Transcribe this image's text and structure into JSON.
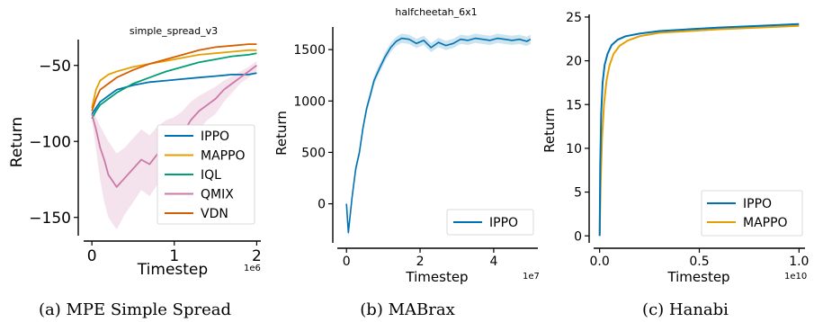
{
  "colors": {
    "IPPO": "#0072b2",
    "MAPPO": "#e69f00",
    "IQL": "#009e73",
    "QMIX": "#cc79a7",
    "VDN": "#d55e00"
  },
  "chart_data": [
    {
      "type": "line",
      "title": "simple_spread_v3",
      "caption": "(a) MPE Simple Spread",
      "xlabel": "Timestep",
      "ylabel": "Return",
      "x_offset_label": "1e6",
      "xlim": [
        -0.1,
        2.05
      ],
      "ylim": [
        -162,
        -33
      ],
      "xticks": [
        {
          "v": 0,
          "label": "0"
        },
        {
          "v": 1,
          "label": "1"
        },
        {
          "v": 2,
          "label": "2"
        }
      ],
      "yticks": [
        {
          "v": -50,
          "label": "−50"
        },
        {
          "v": -100,
          "label": "−100"
        },
        {
          "v": -150,
          "label": "−150"
        }
      ],
      "legend_position": "lower-right",
      "series": [
        {
          "name": "IPPO",
          "x": [
            0,
            0.05,
            0.1,
            0.2,
            0.3,
            0.5,
            0.7,
            0.9,
            1.1,
            1.3,
            1.5,
            1.7,
            1.9,
            2.0
          ],
          "y": [
            -82,
            -78,
            -74,
            -70,
            -66,
            -63,
            -61,
            -60,
            -59,
            -58,
            -57,
            -56,
            -56,
            -55
          ]
        },
        {
          "name": "MAPPO",
          "x": [
            0,
            0.05,
            0.1,
            0.2,
            0.3,
            0.5,
            0.7,
            0.9,
            1.1,
            1.3,
            1.5,
            1.7,
            1.9,
            2.0
          ],
          "y": [
            -78,
            -66,
            -60,
            -56,
            -54,
            -51,
            -49,
            -47,
            -45,
            -43,
            -42,
            -41,
            -40,
            -40
          ]
        },
        {
          "name": "IQL",
          "x": [
            0,
            0.05,
            0.1,
            0.2,
            0.3,
            0.5,
            0.7,
            0.9,
            1.1,
            1.3,
            1.5,
            1.7,
            1.9,
            2.0
          ],
          "y": [
            -85,
            -80,
            -76,
            -72,
            -68,
            -62,
            -58,
            -54,
            -51,
            -48,
            -46,
            -44,
            -43,
            -42
          ]
        },
        {
          "name": "QMIX",
          "x": [
            0,
            0.05,
            0.1,
            0.15,
            0.2,
            0.3,
            0.4,
            0.5,
            0.6,
            0.7,
            0.8,
            0.9,
            1.0,
            1.1,
            1.2,
            1.3,
            1.4,
            1.5,
            1.6,
            1.7,
            1.8,
            1.9,
            2.0
          ],
          "y": [
            -82,
            -92,
            -104,
            -112,
            -122,
            -130,
            -124,
            -118,
            -112,
            -115,
            -108,
            -103,
            -100,
            -95,
            -86,
            -80,
            -76,
            -72,
            -66,
            -62,
            -58,
            -54,
            -50
          ]
        },
        {
          "name": "VDN",
          "x": [
            0,
            0.05,
            0.1,
            0.2,
            0.3,
            0.5,
            0.7,
            0.9,
            1.1,
            1.3,
            1.5,
            1.7,
            1.9,
            2.0
          ],
          "y": [
            -80,
            -72,
            -66,
            -62,
            -58,
            -53,
            -49,
            -46,
            -43,
            -40,
            -38,
            -37,
            -36,
            -36
          ]
        }
      ],
      "qmix_band_upper": [
        -78,
        -84,
        -90,
        -95,
        -100,
        -108,
        -104,
        -98,
        -92,
        -96,
        -90,
        -86,
        -84,
        -80,
        -74,
        -70,
        -67,
        -64,
        -60,
        -57,
        -54,
        -51,
        -47
      ],
      "qmix_band_lower": [
        -86,
        -105,
        -125,
        -140,
        -150,
        -158,
        -148,
        -140,
        -132,
        -136,
        -128,
        -122,
        -118,
        -112,
        -100,
        -92,
        -86,
        -82,
        -74,
        -68,
        -62,
        -58,
        -54
      ]
    },
    {
      "type": "line",
      "title": "halfcheetah_6x1",
      "caption": "(b) MABrax",
      "xlabel": "Timestep",
      "ylabel": "Return",
      "x_offset_label": "1e7",
      "xlim": [
        -0.25,
        5.2
      ],
      "ylim": [
        -380,
        1720
      ],
      "xticks": [
        {
          "v": 0,
          "label": "0"
        },
        {
          "v": 2,
          "label": "2"
        },
        {
          "v": 4,
          "label": "4"
        }
      ],
      "yticks": [
        {
          "v": 0,
          "label": "0"
        },
        {
          "v": 500,
          "label": "500"
        },
        {
          "v": 1000,
          "label": "1000"
        },
        {
          "v": 1500,
          "label": "1500"
        }
      ],
      "legend_position": "lower-right",
      "series": [
        {
          "name": "IPPO",
          "x": [
            0,
            0.05,
            0.15,
            0.25,
            0.35,
            0.45,
            0.55,
            0.65,
            0.75,
            0.9,
            1.05,
            1.2,
            1.35,
            1.5,
            1.7,
            1.9,
            2.1,
            2.3,
            2.5,
            2.7,
            2.9,
            3.1,
            3.3,
            3.5,
            3.7,
            3.9,
            4.1,
            4.3,
            4.5,
            4.7,
            4.9,
            5.0
          ],
          "y": [
            0,
            -280,
            60,
            340,
            500,
            740,
            930,
            1060,
            1200,
            1320,
            1430,
            1520,
            1580,
            1610,
            1600,
            1560,
            1590,
            1520,
            1570,
            1540,
            1560,
            1600,
            1590,
            1610,
            1600,
            1590,
            1610,
            1600,
            1590,
            1600,
            1580,
            1600
          ]
        }
      ]
    },
    {
      "type": "line",
      "title": "",
      "caption": "(c) Hanabi",
      "xlabel": "Timestep",
      "ylabel": "Return",
      "x_offset_label": "1e10",
      "xlim": [
        -0.03,
        1.03
      ],
      "ylim": [
        -0.8,
        25.3
      ],
      "xticks": [
        {
          "v": 0,
          "label": "0.0"
        },
        {
          "v": 0.5,
          "label": "0.5"
        },
        {
          "v": 1.0,
          "label": "1.0"
        }
      ],
      "yticks": [
        {
          "v": 0,
          "label": "0"
        },
        {
          "v": 5,
          "label": "5"
        },
        {
          "v": 10,
          "label": "10"
        },
        {
          "v": 15,
          "label": "15"
        },
        {
          "v": 20,
          "label": "20"
        },
        {
          "v": 25,
          "label": "25"
        }
      ],
      "legend_position": "lower-right",
      "series": [
        {
          "name": "IPPO",
          "x": [
            0,
            0.003,
            0.008,
            0.015,
            0.025,
            0.04,
            0.06,
            0.09,
            0.13,
            0.2,
            0.3,
            0.45,
            0.6,
            0.8,
            1.0
          ],
          "y": [
            0,
            8,
            14,
            17.5,
            19.5,
            20.8,
            21.8,
            22.4,
            22.8,
            23.1,
            23.4,
            23.6,
            23.8,
            24.0,
            24.2
          ]
        },
        {
          "name": "MAPPO",
          "x": [
            0,
            0.005,
            0.012,
            0.022,
            0.035,
            0.05,
            0.07,
            0.1,
            0.14,
            0.2,
            0.3,
            0.45,
            0.6,
            0.8,
            1.0
          ],
          "y": [
            0,
            6,
            11,
            15,
            17.8,
            19.5,
            20.8,
            21.7,
            22.3,
            22.8,
            23.2,
            23.4,
            23.6,
            23.8,
            24.0
          ]
        }
      ]
    }
  ]
}
